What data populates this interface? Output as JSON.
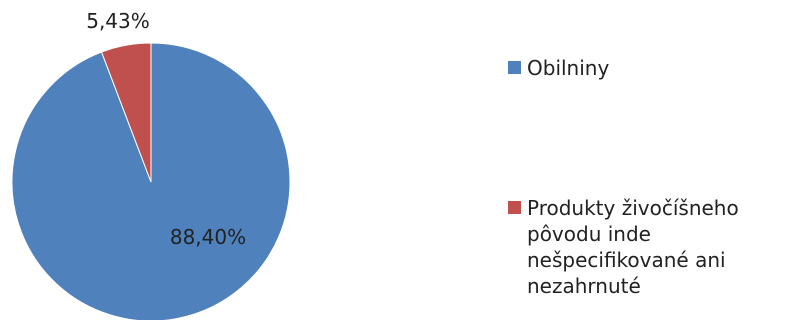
{
  "chart_data": {
    "type": "pie",
    "slices": [
      {
        "label": "Obilniny",
        "value": 88.4,
        "value_label": "88,40%",
        "color": "#4F81BD"
      },
      {
        "label": "Produkty živočíšneho pôvodu inde nešpecifikované ani nezahrnuté",
        "value": 5.43,
        "value_label": "5,43%",
        "color": "#C0504D"
      }
    ],
    "start": "12 o'clock",
    "direction": "clockwise",
    "legend_position": "right"
  }
}
